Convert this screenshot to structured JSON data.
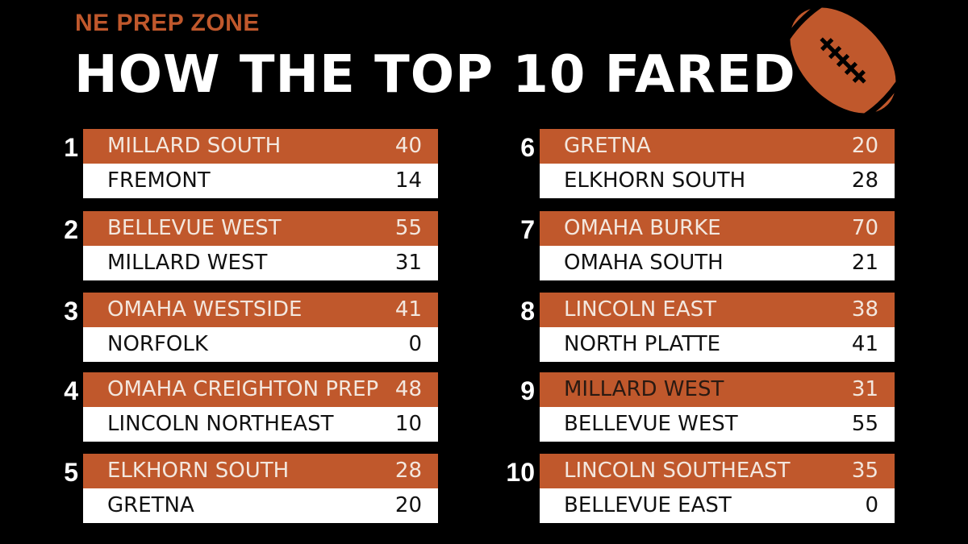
{
  "header": {
    "brand": "NE PREP ZONE",
    "title": "HOW THE TOP 10 FARED"
  },
  "colors": {
    "background": "#000000",
    "accent": "#c0582c",
    "row_light": "#ffffff"
  },
  "icons": {
    "football": "football-icon"
  },
  "games": [
    {
      "rank": "1",
      "winner": {
        "team": "MILLARD SOUTH",
        "score": "40"
      },
      "opponent": {
        "team": "FREMONT",
        "score": "14"
      }
    },
    {
      "rank": "2",
      "winner": {
        "team": "BELLEVUE WEST",
        "score": "55"
      },
      "opponent": {
        "team": "MILLARD WEST",
        "score": "31"
      }
    },
    {
      "rank": "3",
      "winner": {
        "team": "OMAHA WESTSIDE",
        "score": "41"
      },
      "opponent": {
        "team": "NORFOLK",
        "score": "0"
      }
    },
    {
      "rank": "4",
      "winner": {
        "team": "OMAHA CREIGHTON PREP",
        "score": "48"
      },
      "opponent": {
        "team": "LINCOLN NORTHEAST",
        "score": "10"
      }
    },
    {
      "rank": "5",
      "winner": {
        "team": "ELKHORN SOUTH",
        "score": "28"
      },
      "opponent": {
        "team": "GRETNA",
        "score": "20"
      }
    },
    {
      "rank": "6",
      "winner": {
        "team": "GRETNA",
        "score": "20"
      },
      "opponent": {
        "team": "ELKHORN SOUTH",
        "score": "28"
      }
    },
    {
      "rank": "7",
      "winner": {
        "team": "OMAHA BURKE",
        "score": "70"
      },
      "opponent": {
        "team": "OMAHA SOUTH",
        "score": "21"
      }
    },
    {
      "rank": "8",
      "winner": {
        "team": "LINCOLN EAST",
        "score": "38"
      },
      "opponent": {
        "team": "NORTH PLATTE",
        "score": "41"
      }
    },
    {
      "rank": "9",
      "winner": {
        "team": "MILLARD WEST",
        "score": "31"
      },
      "opponent": {
        "team": "BELLEVUE WEST",
        "score": "55"
      }
    },
    {
      "rank": "10",
      "winner": {
        "team": "LINCOLN SOUTHEAST",
        "score": "35"
      },
      "opponent": {
        "team": "BELLEVUE EAST",
        "score": "0"
      }
    }
  ]
}
